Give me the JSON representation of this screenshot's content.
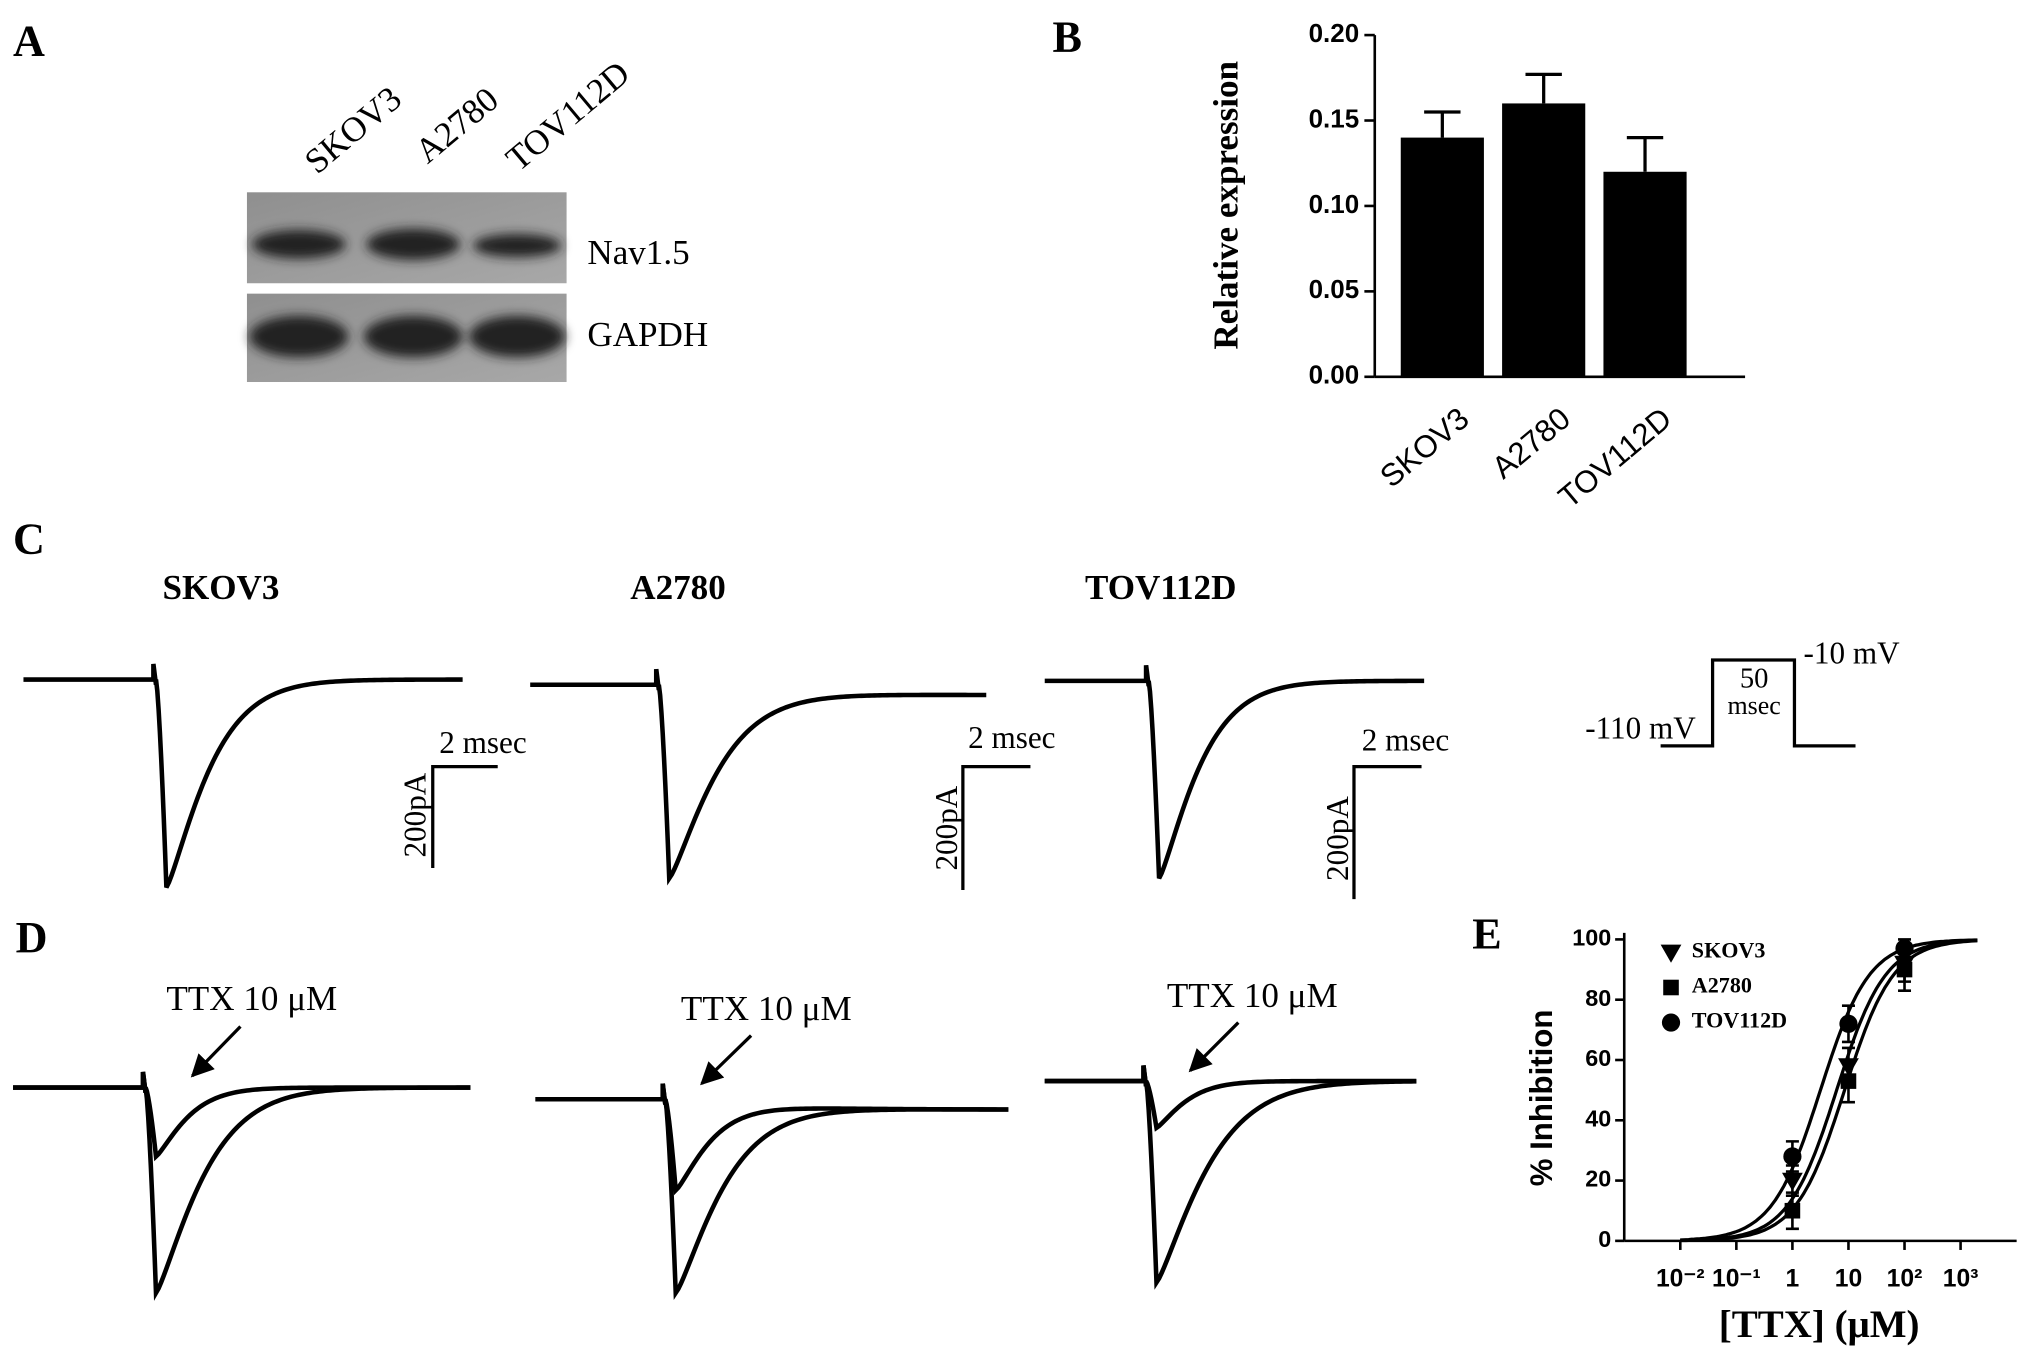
{
  "figure": {
    "panel_a": {
      "label": "A",
      "lanes": [
        "SKOV3",
        "A2780",
        "TOV112D"
      ],
      "bands": [
        "Nav1.5",
        "GAPDH"
      ]
    },
    "panel_c": {
      "label": "C",
      "cells": [
        "SKOV3",
        "A2780",
        "TOV112D"
      ],
      "scale_time": "2 msec",
      "scale_current": "200pA",
      "protocol": {
        "holding": "-110 mV",
        "step": "-10 mV",
        "duration": "50",
        "duration_unit": "msec"
      }
    },
    "panel_d": {
      "label": "D",
      "annotation": "TTX 10 μM"
    }
  },
  "chart_data": [
    {
      "type": "bar",
      "panel_label": "B",
      "ylabel": "Relative expression",
      "categories": [
        "SKOV3",
        "A2780",
        "TOV112D"
      ],
      "values": [
        0.14,
        0.16,
        0.12
      ],
      "errors": [
        0.015,
        0.017,
        0.02
      ],
      "color": "#000000",
      "ylim": [
        0,
        0.2
      ],
      "yticks": [
        {
          "value": 0,
          "label": "0.00"
        },
        {
          "value": 0.05,
          "label": "0.05"
        },
        {
          "value": 0.1,
          "label": "0.10"
        },
        {
          "value": 0.15,
          "label": "0.15"
        },
        {
          "value": 0.2,
          "label": "0.20"
        }
      ]
    },
    {
      "type": "scatter",
      "panel_label": "E",
      "xlabel": "[TTX] (μM)",
      "ylabel": "% Inhibition",
      "xscale": "log",
      "xlim": [
        0.001,
        10000
      ],
      "ylim": [
        0,
        100
      ],
      "xticks": [
        {
          "value": 0.01,
          "label": "10⁻²"
        },
        {
          "value": 0.1,
          "label": "10⁻¹"
        },
        1,
        10,
        {
          "value": 100,
          "label": "10²"
        },
        {
          "value": 1000,
          "label": "10³"
        }
      ],
      "yticks": [
        0,
        20,
        40,
        60,
        80,
        100
      ],
      "legend": "upper left",
      "series": [
        {
          "name": "SKOV3",
          "marker": "triangle-down",
          "color": "#000000",
          "x": [
            1,
            10,
            100
          ],
          "values": [
            20,
            58,
            92
          ],
          "errors": [
            5,
            6,
            6
          ]
        },
        {
          "name": "A2780",
          "marker": "square",
          "color": "#000000",
          "x": [
            1,
            10,
            100
          ],
          "values": [
            10,
            53,
            90
          ],
          "errors": [
            6,
            7,
            7
          ]
        },
        {
          "name": "TOV112D",
          "marker": "circle",
          "color": "#000000",
          "x": [
            1,
            10,
            100
          ],
          "values": [
            28,
            72,
            97
          ],
          "errors": [
            5,
            6,
            3
          ]
        }
      ]
    }
  ]
}
